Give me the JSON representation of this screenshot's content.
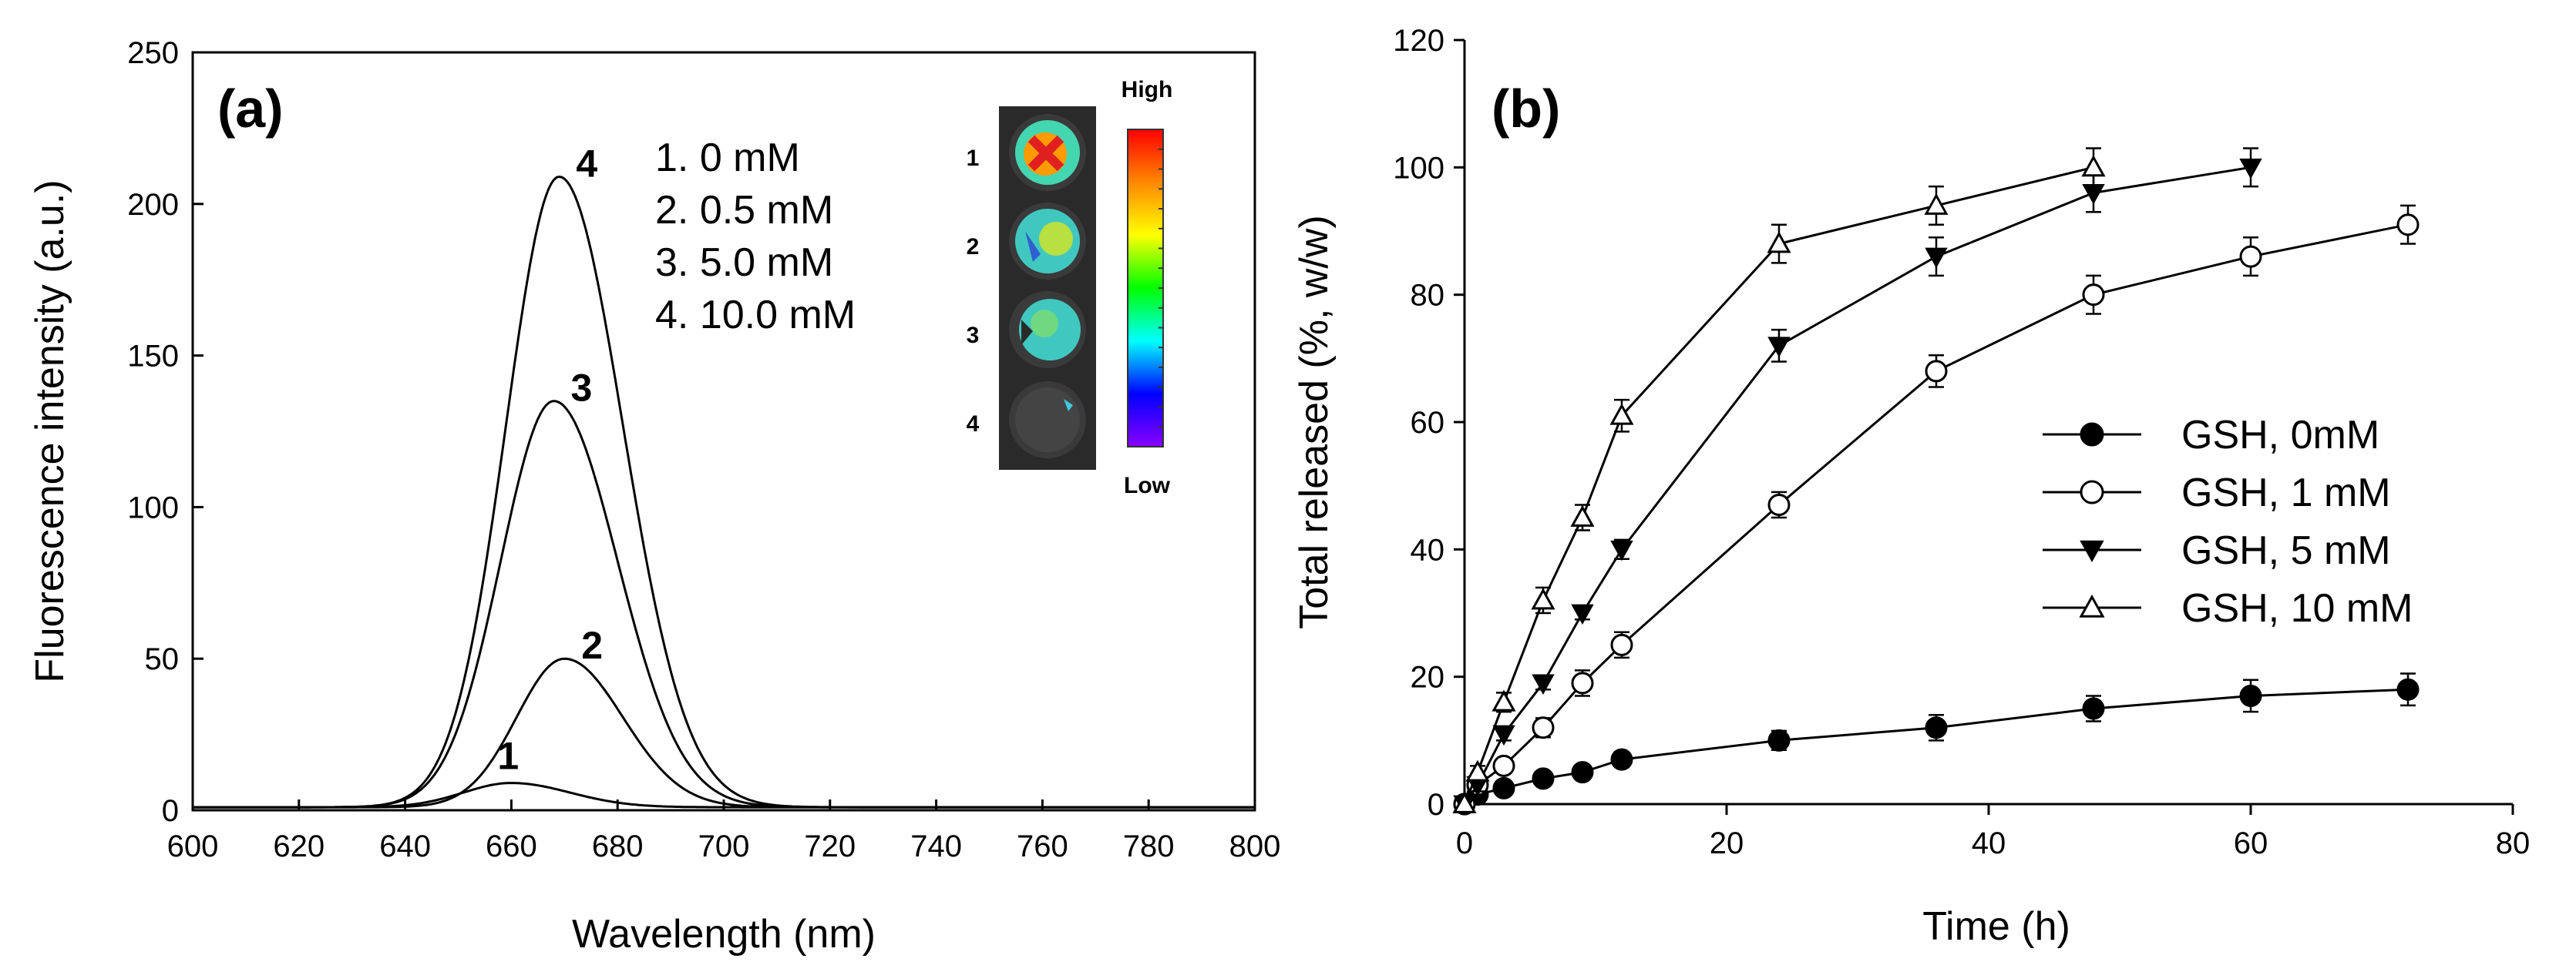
{
  "chart_data": [
    {
      "type": "line",
      "panel_label": "(a)",
      "xlabel": "Wavelength (nm)",
      "ylabel": "Fluorescence intensity (a.u.)",
      "xlim": [
        600,
        800
      ],
      "ylim": [
        0,
        250
      ],
      "xticks": [
        "600",
        "620",
        "640",
        "660",
        "680",
        "700",
        "720",
        "740",
        "760",
        "780",
        "800"
      ],
      "yticks": [
        "0",
        "50",
        "100",
        "150",
        "200",
        "250"
      ],
      "series": [
        {
          "name": "1",
          "concentration": "1. 0 mM",
          "peak_x": 660,
          "peak_y": 8,
          "sigma_left": 9,
          "sigma_right": 11
        },
        {
          "name": "2",
          "concentration": "2. 0.5 mM",
          "peak_x": 670,
          "peak_y": 49,
          "sigma_left": 9,
          "sigma_right": 11
        },
        {
          "name": "3",
          "concentration": "3. 5.0 mM",
          "peak_x": 668,
          "peak_y": 134,
          "sigma_left": 10,
          "sigma_right": 12
        },
        {
          "name": "4",
          "concentration": "4. 10.0 mM",
          "peak_x": 669,
          "peak_y": 208,
          "sigma_left": 10,
          "sigma_right": 12
        }
      ],
      "inset": {
        "well_labels": [
          "1",
          "2",
          "3",
          "4"
        ],
        "scale_high": "High",
        "scale_low": "Low",
        "scale_colors": [
          "#ff0000",
          "#ff8800",
          "#ffff00",
          "#00ff00",
          "#00ffff",
          "#0000ff",
          "#8800ff"
        ]
      }
    },
    {
      "type": "line",
      "panel_label": "(b)",
      "xlabel": "Time (h)",
      "ylabel": "Total released (%, w/w)",
      "xlim": [
        0,
        80
      ],
      "ylim": [
        0,
        120
      ],
      "xticks": [
        "0",
        "20",
        "40",
        "60",
        "80"
      ],
      "yticks": [
        "0",
        "20",
        "40",
        "60",
        "80",
        "100",
        "120"
      ],
      "series": [
        {
          "name": "GSH, 0mM",
          "marker": "filled-circle",
          "x": [
            0,
            1,
            3,
            6,
            9,
            12,
            24,
            36,
            48,
            60,
            72
          ],
          "y": [
            0,
            1.5,
            2.5,
            4,
            5,
            7,
            10,
            12,
            15,
            17,
            18
          ],
          "err": [
            0,
            0.5,
            0.5,
            0.8,
            1,
            1.2,
            1.5,
            2,
            2,
            2.5,
            2.5
          ]
        },
        {
          "name": "GSH, 1 mM",
          "marker": "open-circle",
          "x": [
            0,
            1,
            3,
            6,
            9,
            12,
            24,
            36,
            48,
            60,
            72
          ],
          "y": [
            0,
            3,
            6,
            12,
            19,
            25,
            47,
            68,
            80,
            86,
            91
          ],
          "err": [
            0,
            1,
            1,
            1.5,
            2,
            2,
            2,
            2.5,
            3,
            3,
            3
          ]
        },
        {
          "name": "GSH, 5 mM",
          "marker": "filled-triangle-down",
          "x": [
            0,
            1,
            3,
            6,
            9,
            12,
            24,
            36,
            48,
            60
          ],
          "y": [
            0,
            3,
            11,
            19,
            30,
            40,
            72,
            86,
            96,
            100
          ],
          "err": [
            0,
            1,
            1,
            1,
            1,
            1.5,
            2.5,
            3,
            3,
            3
          ]
        },
        {
          "name": "GSH, 10 mM",
          "marker": "open-triangle-up",
          "x": [
            0,
            1,
            3,
            6,
            9,
            12,
            24,
            36,
            48
          ],
          "y": [
            0,
            5,
            16,
            32,
            45,
            61,
            88,
            94,
            100
          ],
          "err": [
            0,
            1,
            1.5,
            2,
            2,
            2.5,
            3,
            3,
            3
          ]
        }
      ]
    }
  ]
}
